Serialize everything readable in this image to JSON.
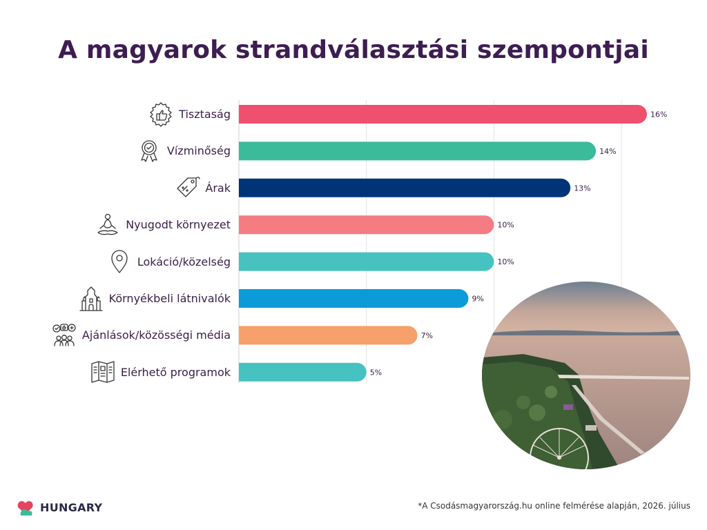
{
  "title": "A magyarok strandválasztási szempontjai",
  "chart_data": {
    "type": "bar",
    "orientation": "horizontal",
    "categories": [
      "Tisztaság",
      "Vízminőség",
      "Árak",
      "Nyugodt környezet",
      "Lokáció/közelség",
      "Környékbeli látnivalók",
      "Ajánlások/közösségi média",
      "Elérhető programok"
    ],
    "values": [
      16,
      14,
      13,
      10,
      10,
      9,
      7,
      5
    ],
    "value_labels": [
      "16%",
      "14%",
      "13%",
      "10%",
      "10%",
      "9%",
      "7%",
      "5%"
    ],
    "bar_colors": [
      "#ef506d",
      "#3cbb9a",
      "#003478",
      "#f47c83",
      "#46c2c0",
      "#0b9bd8",
      "#f6a06b",
      "#46c2c0"
    ],
    "icons": [
      "thumbs-up-badge-icon",
      "rosette-award-icon",
      "price-tag-icon",
      "meditation-icon",
      "location-pin-icon",
      "cathedral-icon",
      "social-people-icon",
      "brochure-map-icon"
    ],
    "xlim": [
      0,
      16
    ],
    "xlabel": "",
    "ylabel": "",
    "grid": true,
    "gridline_color": "#e4e4e4"
  },
  "logo": {
    "text": "HUNGARY",
    "colors": [
      "#e4445f",
      "#3cbb9a"
    ]
  },
  "footnote": "*A Csodásmagyarország.hu online felmérése alapján, 2026. július",
  "photo": {
    "description_icon": "lake-balaton-photo"
  }
}
